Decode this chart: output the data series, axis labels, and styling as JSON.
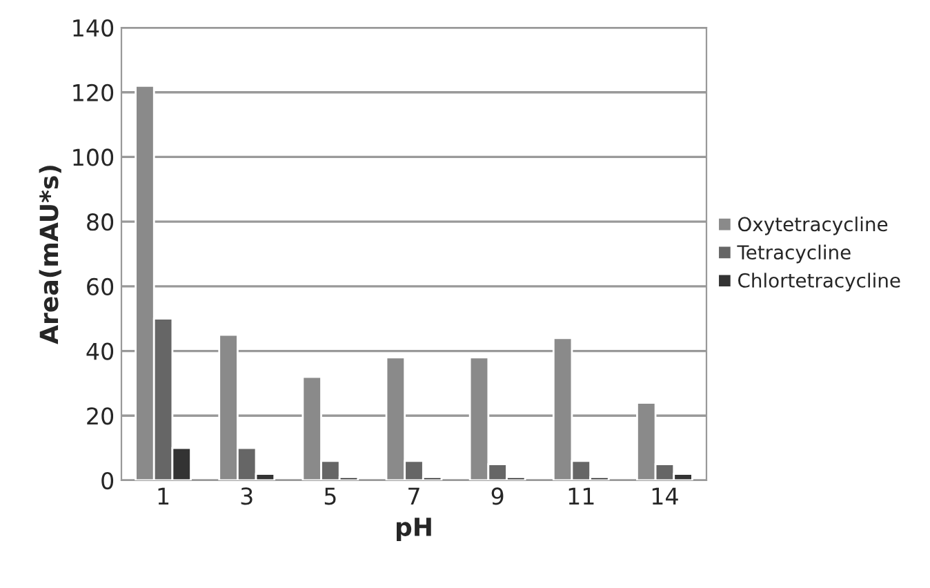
{
  "chart_data": {
    "type": "bar",
    "xlabel": "pH",
    "ylabel": "Area(mAU*s)",
    "categories": [
      "1",
      "3",
      "5",
      "7",
      "9",
      "11",
      "14"
    ],
    "series": [
      {
        "name": "Oxytetracycline",
        "color": "#8a8a8a",
        "values": [
          122,
          45,
          32,
          38,
          38,
          44,
          24
        ]
      },
      {
        "name": "Tetracycline",
        "color": "#666666",
        "values": [
          50,
          10,
          6,
          6,
          5,
          6,
          5
        ]
      },
      {
        "name": "Chlortetracycline",
        "color": "#333333",
        "values": [
          10,
          2,
          1,
          1,
          1,
          1,
          2
        ]
      }
    ],
    "ylim": [
      0,
      140
    ],
    "yticks": [
      0,
      20,
      40,
      60,
      80,
      100,
      120,
      140
    ],
    "grid": "y",
    "legend": "right"
  }
}
